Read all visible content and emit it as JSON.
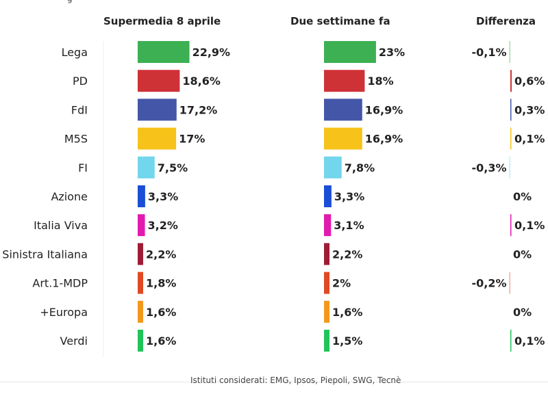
{
  "footer": "Istituti considerati: EMG, Ipsos, Piepoli, SWG, Tecnè",
  "chart_data": {
    "type": "bar",
    "orientation": "horizontal",
    "categories": [
      "Lega",
      "PD",
      "FdI",
      "M5S",
      "FI",
      "Azione",
      "Italia Viva",
      "Sinistra Italiana",
      "Art.1-MDP",
      "+Europa",
      "Verdi"
    ],
    "colors": [
      "#3cb053",
      "#cf3236",
      "#4456a8",
      "#f7c31a",
      "#72d6ec",
      "#1a4ed6",
      "#e21aaf",
      "#9e1d36",
      "#e04a22",
      "#f3981c",
      "#20c45a"
    ],
    "series": [
      {
        "name": "Supermedia 8 aprile",
        "values": [
          22.9,
          18.6,
          17.2,
          17,
          7.5,
          3.3,
          3.2,
          2.2,
          1.8,
          1.6,
          1.6
        ],
        "labels": [
          "22,9%",
          "18,6%",
          "17,2%",
          "17%",
          "7,5%",
          "3,3%",
          "3,2%",
          "2,2%",
          "1,8%",
          "1,6%",
          "1,6%"
        ]
      },
      {
        "name": "Due settimane fa",
        "values": [
          23,
          18,
          16.9,
          16.9,
          7.8,
          3.3,
          3.1,
          2.2,
          2,
          1.6,
          1.5
        ],
        "labels": [
          "23%",
          "18%",
          "16,9%",
          "16,9%",
          "7,8%",
          "3,3%",
          "3,1%",
          "2,2%",
          "2%",
          "1,6%",
          "1,5%"
        ]
      },
      {
        "name": "Differenza",
        "values": [
          -0.1,
          0.6,
          0.3,
          0.1,
          -0.3,
          0,
          0.1,
          0,
          -0.2,
          0,
          0.1
        ],
        "labels": [
          "-0,1%",
          "0,6%",
          "0,3%",
          "0,1%",
          "-0,3%",
          "0%",
          "0,1%",
          "0%",
          "-0,2%",
          "0%",
          "0,1%"
        ]
      }
    ]
  }
}
